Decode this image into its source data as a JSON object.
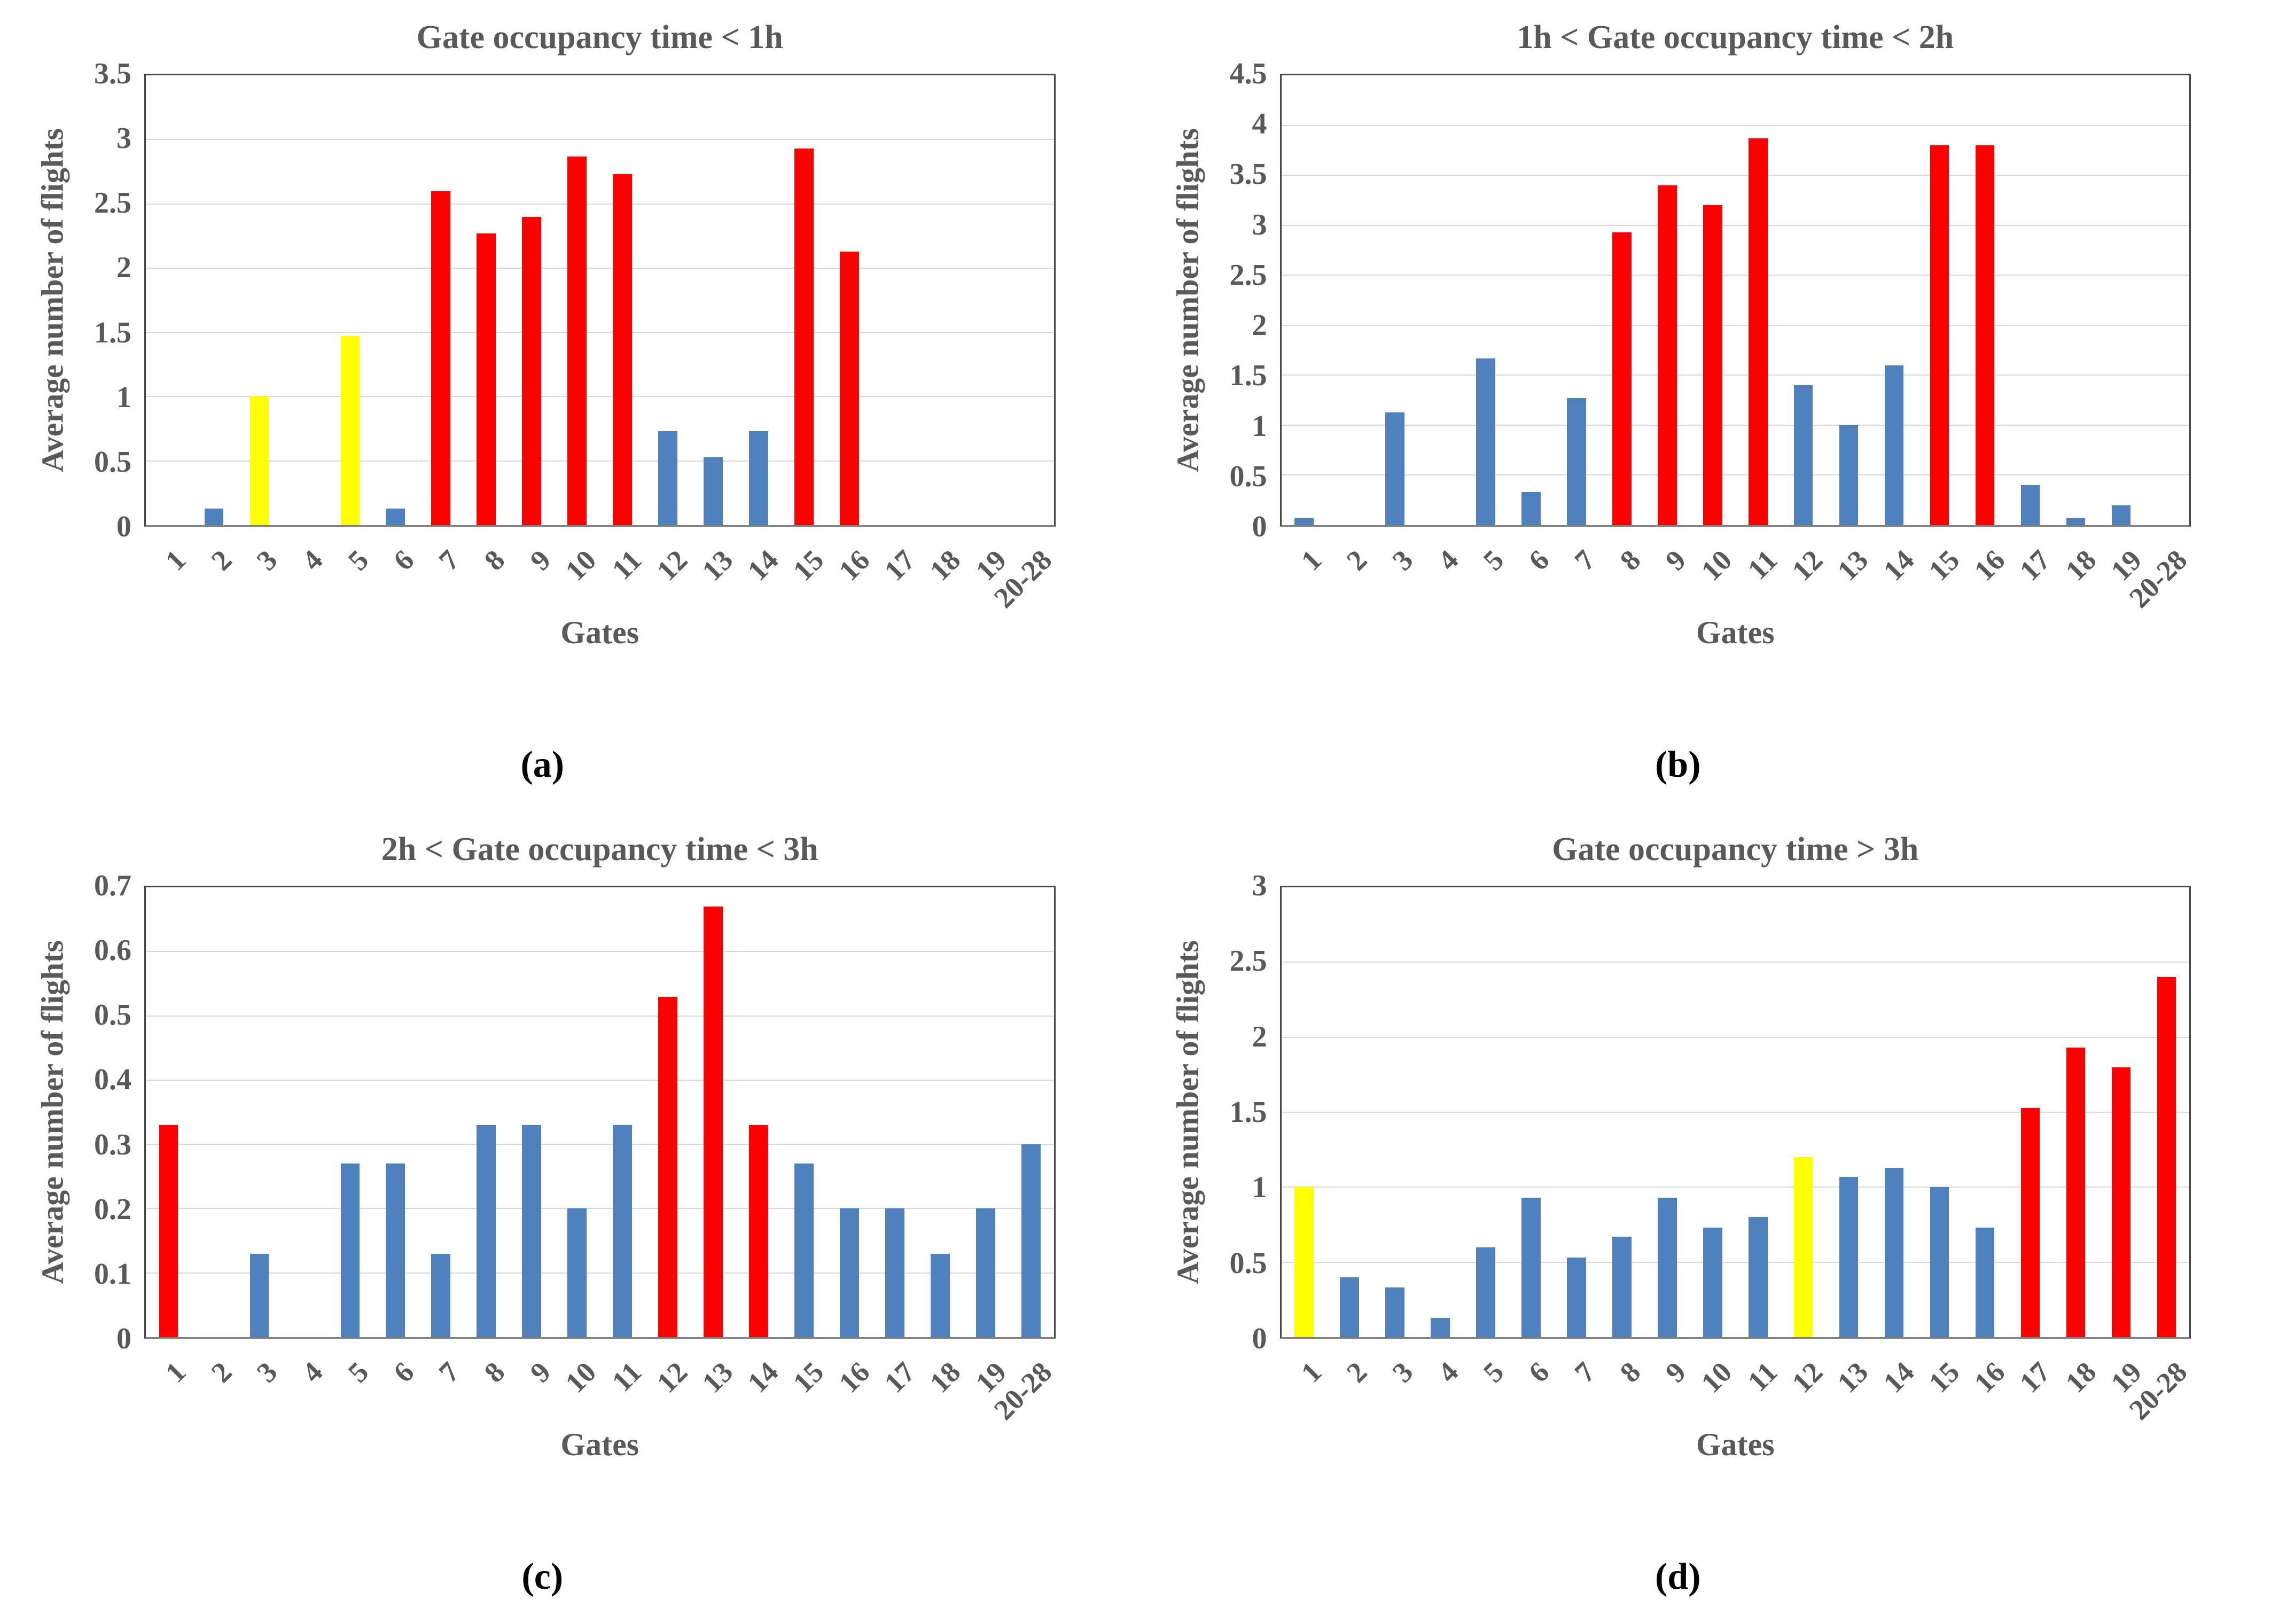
{
  "figure": {
    "background": "#ffffff",
    "text_color": "#595959",
    "caption_color": "#000000",
    "gridline_color": "#d9d9d9",
    "plot_border_color": "#464646",
    "axis_line_color": "#7f7f7f",
    "palette": {
      "blue": "#4E81BD",
      "red": "#FF0000",
      "yellow": "#FFFF00"
    }
  },
  "chart_data": [
    {
      "id": "a",
      "type": "bar",
      "title": "Gate occupancy time < 1h",
      "caption": "(a)",
      "xlabel": "Gates",
      "ylabel": "Average number of flights",
      "ylim": [
        0,
        3.5
      ],
      "ytick_step": 0.5,
      "grid": true,
      "legend": "none",
      "categories": [
        "1",
        "2",
        "3",
        "4",
        "5",
        "6",
        "7",
        "8",
        "9",
        "10",
        "11",
        "12",
        "13",
        "14",
        "15",
        "16",
        "17",
        "18",
        "19",
        "20-28"
      ],
      "values": [
        0,
        0.13,
        1.0,
        0,
        1.47,
        0.13,
        2.6,
        2.27,
        2.4,
        2.87,
        2.73,
        0.73,
        0.53,
        0.73,
        2.93,
        2.13,
        0,
        0,
        0,
        0
      ],
      "bar_colors": [
        "blue",
        "blue",
        "yellow",
        "blue",
        "yellow",
        "blue",
        "red",
        "red",
        "red",
        "red",
        "red",
        "blue",
        "blue",
        "blue",
        "red",
        "red",
        "blue",
        "blue",
        "blue",
        "blue"
      ]
    },
    {
      "id": "b",
      "type": "bar",
      "title": "1h < Gate occupancy time < 2h",
      "caption": "(b)",
      "xlabel": "Gates",
      "ylabel": "Average number of flights",
      "ylim": [
        0,
        4.5
      ],
      "ytick_step": 0.5,
      "grid": true,
      "legend": "none",
      "categories": [
        "1",
        "2",
        "3",
        "4",
        "5",
        "6",
        "7",
        "8",
        "9",
        "10",
        "11",
        "12",
        "13",
        "14",
        "15",
        "16",
        "17",
        "18",
        "19",
        "20-28"
      ],
      "values": [
        0.07,
        0,
        1.13,
        0,
        1.67,
        0.33,
        1.27,
        2.93,
        3.4,
        3.2,
        3.87,
        1.4,
        1.0,
        1.6,
        3.8,
        3.8,
        0.4,
        0.07,
        0.2,
        0
      ],
      "bar_colors": [
        "blue",
        "blue",
        "blue",
        "blue",
        "blue",
        "blue",
        "blue",
        "red",
        "red",
        "red",
        "red",
        "blue",
        "blue",
        "blue",
        "red",
        "red",
        "blue",
        "blue",
        "blue",
        "blue"
      ]
    },
    {
      "id": "c",
      "type": "bar",
      "title": "2h < Gate occupancy time < 3h",
      "caption": "(c)",
      "xlabel": "Gates",
      "ylabel": "Average number of flights",
      "ylim": [
        0,
        0.7
      ],
      "ytick_step": 0.1,
      "grid": true,
      "legend": "none",
      "categories": [
        "1",
        "2",
        "3",
        "4",
        "5",
        "6",
        "7",
        "8",
        "9",
        "10",
        "11",
        "12",
        "13",
        "14",
        "15",
        "16",
        "17",
        "18",
        "19",
        "20-28"
      ],
      "values": [
        0.33,
        0,
        0.13,
        0,
        0.27,
        0.27,
        0.13,
        0.33,
        0.33,
        0.2,
        0.33,
        0.53,
        0.67,
        0.33,
        0.27,
        0.2,
        0.2,
        0.13,
        0.2,
        0.3
      ],
      "bar_colors": [
        "red",
        "blue",
        "blue",
        "blue",
        "blue",
        "blue",
        "blue",
        "blue",
        "blue",
        "blue",
        "blue",
        "red",
        "red",
        "red",
        "blue",
        "blue",
        "blue",
        "blue",
        "blue",
        "blue"
      ]
    },
    {
      "id": "d",
      "type": "bar",
      "title": "Gate occupancy time > 3h",
      "caption": "(d)",
      "xlabel": "Gates",
      "ylabel": "Average number of flights",
      "ylim": [
        0,
        3
      ],
      "ytick_step": 0.5,
      "grid": true,
      "legend": "none",
      "categories": [
        "1",
        "2",
        "3",
        "4",
        "5",
        "6",
        "7",
        "8",
        "9",
        "10",
        "11",
        "12",
        "13",
        "14",
        "15",
        "16",
        "17",
        "18",
        "19",
        "20-28"
      ],
      "values": [
        1.0,
        0.4,
        0.33,
        0.13,
        0.6,
        0.93,
        0.53,
        0.67,
        0.93,
        0.73,
        0.8,
        1.2,
        1.07,
        1.13,
        1.0,
        0.73,
        1.53,
        1.93,
        1.8,
        2.4
      ],
      "bar_colors": [
        "yellow",
        "blue",
        "blue",
        "blue",
        "blue",
        "blue",
        "blue",
        "blue",
        "blue",
        "blue",
        "blue",
        "yellow",
        "blue",
        "blue",
        "blue",
        "blue",
        "red",
        "red",
        "red",
        "red"
      ]
    }
  ]
}
